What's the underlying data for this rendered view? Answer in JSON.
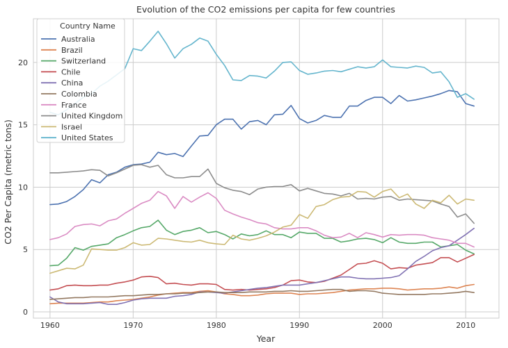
{
  "chart_data": {
    "type": "line",
    "title": "Evolution of the CO2 emissions per capita for few countries",
    "xlabel": "Year",
    "ylabel": "CO2 Per Capita (metric tons)",
    "xlim": [
      1958,
      2014
    ],
    "ylim": [
      -0.5,
      23.5
    ],
    "xticks": [
      1960,
      1970,
      1980,
      1990,
      2000,
      2010
    ],
    "yticks": [
      0,
      5,
      10,
      15,
      20
    ],
    "grid": true,
    "legend": {
      "title": "Country Name",
      "placement": "top-left"
    },
    "x": [
      1960,
      1961,
      1962,
      1963,
      1964,
      1965,
      1966,
      1967,
      1968,
      1969,
      1970,
      1971,
      1972,
      1973,
      1974,
      1975,
      1976,
      1977,
      1978,
      1979,
      1980,
      1981,
      1982,
      1983,
      1984,
      1985,
      1986,
      1987,
      1988,
      1989,
      1990,
      1991,
      1992,
      1993,
      1994,
      1995,
      1996,
      1997,
      1998,
      1999,
      2000,
      2001,
      2002,
      2003,
      2004,
      2005,
      2006,
      2007,
      2008,
      2009,
      2010,
      2011
    ],
    "series": [
      {
        "name": "Australia",
        "color": "#4c72b0",
        "values": [
          8.6,
          8.65,
          8.85,
          9.25,
          9.8,
          10.6,
          10.35,
          11.0,
          11.2,
          11.6,
          11.8,
          11.85,
          12.0,
          12.8,
          12.6,
          12.7,
          12.45,
          13.3,
          14.1,
          14.15,
          15.0,
          15.45,
          15.45,
          14.65,
          15.25,
          15.35,
          15.0,
          15.8,
          15.85,
          16.55,
          15.5,
          15.15,
          15.35,
          15.75,
          15.6,
          15.6,
          16.5,
          16.5,
          16.95,
          17.2,
          17.2,
          16.7,
          17.35,
          16.9,
          17.0,
          17.15,
          17.3,
          17.5,
          17.75,
          17.65,
          16.7,
          16.5
        ]
      },
      {
        "name": "Brazil",
        "color": "#dd8452",
        "values": [
          0.65,
          0.7,
          0.7,
          0.7,
          0.7,
          0.75,
          0.8,
          0.8,
          0.9,
          0.95,
          1.0,
          1.1,
          1.2,
          1.35,
          1.45,
          1.5,
          1.55,
          1.55,
          1.65,
          1.7,
          1.6,
          1.45,
          1.4,
          1.3,
          1.3,
          1.35,
          1.45,
          1.5,
          1.5,
          1.5,
          1.4,
          1.45,
          1.45,
          1.5,
          1.55,
          1.65,
          1.75,
          1.8,
          1.85,
          1.85,
          1.9,
          1.9,
          1.85,
          1.75,
          1.8,
          1.85,
          1.85,
          1.9,
          2.0,
          1.9,
          2.1,
          2.2
        ]
      },
      {
        "name": "Switzerland",
        "color": "#55a868",
        "values": [
          3.7,
          3.75,
          4.3,
          5.15,
          4.95,
          5.25,
          5.35,
          5.45,
          5.95,
          6.2,
          6.5,
          6.75,
          6.85,
          7.35,
          6.55,
          6.2,
          6.45,
          6.55,
          6.75,
          6.35,
          6.45,
          6.2,
          5.85,
          6.25,
          6.1,
          6.2,
          6.5,
          6.2,
          6.2,
          5.95,
          6.4,
          6.3,
          6.3,
          5.9,
          5.9,
          5.6,
          5.7,
          5.85,
          5.9,
          5.8,
          5.55,
          5.95,
          5.6,
          5.5,
          5.5,
          5.6,
          5.6,
          5.2,
          5.3,
          5.4,
          4.95,
          4.65
        ]
      },
      {
        "name": "Chile",
        "color": "#c44e52",
        "values": [
          1.75,
          1.85,
          2.1,
          2.15,
          2.1,
          2.1,
          2.15,
          2.15,
          2.3,
          2.4,
          2.55,
          2.8,
          2.85,
          2.75,
          2.25,
          2.3,
          2.2,
          2.15,
          2.25,
          2.25,
          2.2,
          1.8,
          1.75,
          1.8,
          1.75,
          1.8,
          1.85,
          1.95,
          2.15,
          2.5,
          2.55,
          2.4,
          2.35,
          2.45,
          2.7,
          2.95,
          3.4,
          3.85,
          3.9,
          4.1,
          3.9,
          3.45,
          3.55,
          3.5,
          3.75,
          3.85,
          3.95,
          4.35,
          4.35,
          4.0,
          4.3,
          4.6
        ]
      },
      {
        "name": "China",
        "color": "#8172b3",
        "values": [
          1.2,
          0.8,
          0.65,
          0.65,
          0.65,
          0.7,
          0.75,
          0.6,
          0.6,
          0.75,
          0.95,
          1.05,
          1.1,
          1.1,
          1.1,
          1.25,
          1.3,
          1.4,
          1.6,
          1.6,
          1.55,
          1.5,
          1.6,
          1.7,
          1.8,
          1.9,
          1.95,
          2.05,
          2.15,
          2.15,
          2.15,
          2.25,
          2.35,
          2.5,
          2.65,
          2.8,
          2.8,
          2.7,
          2.65,
          2.65,
          2.7,
          2.75,
          2.9,
          3.45,
          4.05,
          4.45,
          4.9,
          5.15,
          5.3,
          5.75,
          6.2,
          6.7
        ]
      },
      {
        "name": "Colombia",
        "color": "#937860",
        "values": [
          1.0,
          1.05,
          1.1,
          1.15,
          1.15,
          1.2,
          1.2,
          1.2,
          1.25,
          1.3,
          1.3,
          1.35,
          1.4,
          1.4,
          1.45,
          1.45,
          1.5,
          1.5,
          1.55,
          1.6,
          1.6,
          1.55,
          1.55,
          1.55,
          1.6,
          1.6,
          1.6,
          1.65,
          1.65,
          1.7,
          1.65,
          1.65,
          1.7,
          1.75,
          1.8,
          1.8,
          1.65,
          1.7,
          1.7,
          1.65,
          1.5,
          1.45,
          1.4,
          1.4,
          1.4,
          1.4,
          1.45,
          1.45,
          1.5,
          1.55,
          1.65,
          1.55
        ]
      },
      {
        "name": "France",
        "color": "#da8bc3",
        "values": [
          5.8,
          5.95,
          6.25,
          6.85,
          7.0,
          7.05,
          6.9,
          7.3,
          7.45,
          7.9,
          8.3,
          8.7,
          8.95,
          9.65,
          9.3,
          8.3,
          9.25,
          8.8,
          9.2,
          9.55,
          9.1,
          8.15,
          7.85,
          7.6,
          7.4,
          7.15,
          7.05,
          6.75,
          6.65,
          6.65,
          6.75,
          6.75,
          6.5,
          6.15,
          5.95,
          6.0,
          6.3,
          5.95,
          6.35,
          6.2,
          6.0,
          6.2,
          6.15,
          6.2,
          6.2,
          6.15,
          5.95,
          5.85,
          5.75,
          5.5,
          5.5,
          5.2
        ]
      },
      {
        "name": "United Kingdom",
        "color": "#8c8c8c",
        "values": [
          11.15,
          11.15,
          11.2,
          11.25,
          11.3,
          11.4,
          11.35,
          10.9,
          11.15,
          11.45,
          11.75,
          11.8,
          11.6,
          11.75,
          11.0,
          10.75,
          10.75,
          10.85,
          10.85,
          11.45,
          10.3,
          9.95,
          9.75,
          9.65,
          9.4,
          9.85,
          10.0,
          10.05,
          10.05,
          10.2,
          9.7,
          9.9,
          9.7,
          9.5,
          9.45,
          9.3,
          9.5,
          9.05,
          9.1,
          9.05,
          9.2,
          9.25,
          8.95,
          9.05,
          9.0,
          8.95,
          8.9,
          8.65,
          8.45,
          7.6,
          7.85,
          7.1
        ]
      },
      {
        "name": "Israel",
        "color": "#ccb974",
        "values": [
          3.1,
          3.3,
          3.5,
          3.45,
          3.75,
          5.05,
          5.0,
          4.95,
          4.95,
          5.15,
          5.55,
          5.35,
          5.4,
          5.9,
          5.85,
          5.75,
          5.65,
          5.6,
          5.75,
          5.55,
          5.45,
          5.4,
          6.15,
          5.85,
          5.75,
          5.9,
          6.1,
          6.4,
          6.8,
          6.95,
          7.8,
          7.5,
          8.45,
          8.6,
          9.0,
          9.2,
          9.25,
          9.65,
          9.6,
          9.2,
          9.65,
          9.85,
          9.15,
          9.45,
          8.65,
          8.3,
          8.95,
          8.75,
          9.35,
          8.65,
          9.05,
          8.95
        ]
      },
      {
        "name": "United States",
        "color": "#64b5cd",
        "values": [
          16.0,
          15.8,
          16.2,
          16.7,
          17.2,
          17.5,
          18.1,
          18.5,
          19.0,
          19.5,
          21.1,
          20.95,
          21.7,
          22.5,
          21.5,
          20.35,
          21.1,
          21.45,
          21.95,
          21.7,
          20.65,
          19.75,
          18.6,
          18.55,
          18.95,
          18.9,
          18.75,
          19.3,
          20.0,
          20.05,
          19.35,
          19.05,
          19.15,
          19.3,
          19.35,
          19.25,
          19.45,
          19.65,
          19.55,
          19.65,
          20.2,
          19.65,
          19.6,
          19.55,
          19.7,
          19.6,
          19.15,
          19.25,
          18.45,
          17.2,
          17.5,
          17.05
        ]
      }
    ]
  }
}
